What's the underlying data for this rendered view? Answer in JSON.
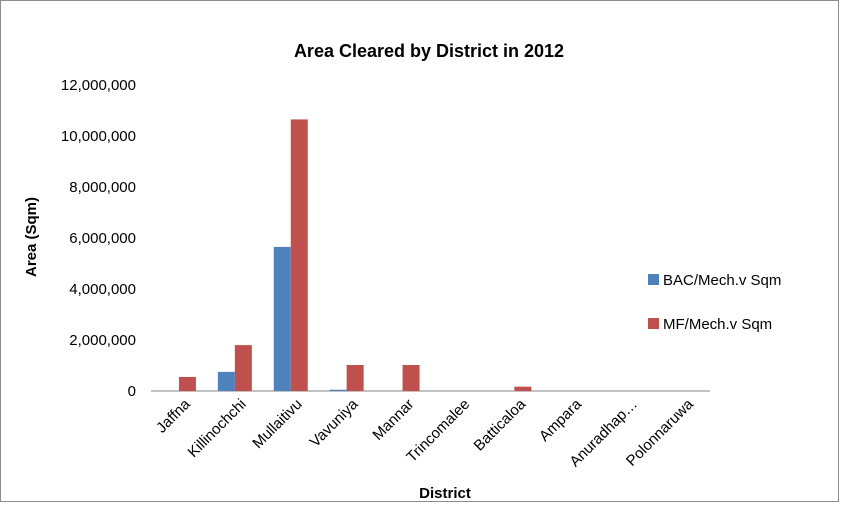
{
  "chart_data": {
    "type": "bar",
    "title": "Area Cleared  by District in 2012",
    "xlabel": "District",
    "ylabel": "Area (Sqm)",
    "ylim": [
      0,
      12000000
    ],
    "yticks": [
      0,
      2000000,
      4000000,
      6000000,
      8000000,
      10000000,
      12000000
    ],
    "ytick_labels": [
      "0",
      "2,000,000",
      "4,000,000",
      "6,000,000",
      "8,000,000",
      "10,000,000",
      "12,000,000"
    ],
    "categories": [
      "Jaffna",
      "Killinochchi",
      "Mullaitivu",
      "Vavuniya",
      "Mannar",
      "Trincomalee",
      "Batticaloa",
      "Ampara",
      "Anuradhap…",
      "Polonnaruwa"
    ],
    "series": [
      {
        "name": "BAC/Mech.v Sqm",
        "color": "#4f81bd",
        "values": [
          0,
          750000,
          5650000,
          50000,
          0,
          0,
          0,
          0,
          0,
          0
        ]
      },
      {
        "name": "MF/Mech.v Sqm",
        "color": "#c0504d",
        "values": [
          550000,
          1800000,
          10650000,
          1020000,
          1020000,
          0,
          170000,
          0,
          0,
          0
        ]
      }
    ],
    "grid": false,
    "legend_position": "right"
  }
}
